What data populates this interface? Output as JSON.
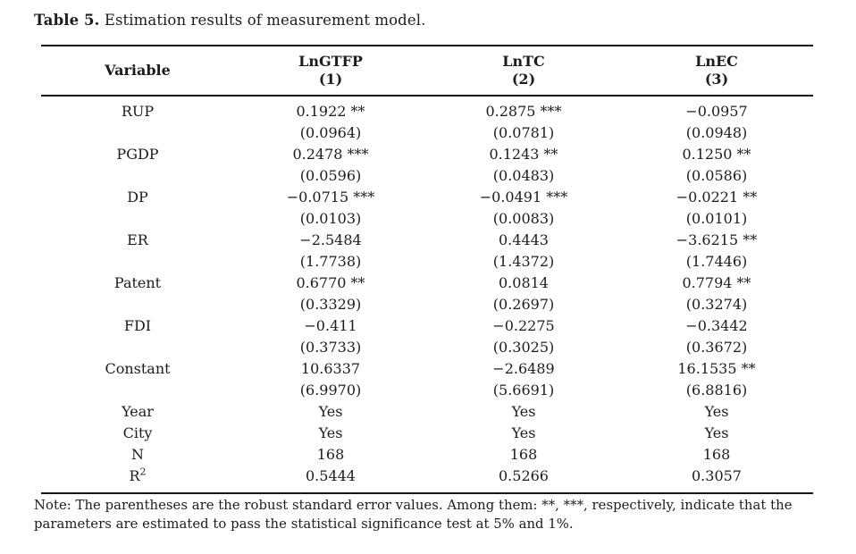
{
  "caption": {
    "label": "Table 5.",
    "text": " Estimation results of measurement model."
  },
  "table": {
    "columns": [
      {
        "line1": "Variable",
        "line2": ""
      },
      {
        "line1": "LnGTFP",
        "line2": "(1)"
      },
      {
        "line1": "LnTC",
        "line2": "(2)"
      },
      {
        "line1": "LnEC",
        "line2": "(3)"
      }
    ],
    "rows": [
      {
        "label": "RUP",
        "sup": "",
        "cells": [
          "0.1922 **",
          "0.2875 ***",
          "−0.0957"
        ]
      },
      {
        "label": "",
        "sup": "",
        "cells": [
          "(0.0964)",
          "(0.0781)",
          "(0.0948)"
        ]
      },
      {
        "label": "PGDP",
        "sup": "",
        "cells": [
          "0.2478 ***",
          "0.1243 **",
          "0.1250 **"
        ]
      },
      {
        "label": "",
        "sup": "",
        "cells": [
          "(0.0596)",
          "(0.0483)",
          "(0.0586)"
        ]
      },
      {
        "label": "DP",
        "sup": "",
        "cells": [
          "−0.0715 ***",
          "−0.0491 ***",
          "−0.0221 **"
        ]
      },
      {
        "label": "",
        "sup": "",
        "cells": [
          "(0.0103)",
          "(0.0083)",
          "(0.0101)"
        ]
      },
      {
        "label": "ER",
        "sup": "",
        "cells": [
          "−2.5484",
          "0.4443",
          "−3.6215 **"
        ]
      },
      {
        "label": "",
        "sup": "",
        "cells": [
          "(1.7738)",
          "(1.4372)",
          "(1.7446)"
        ]
      },
      {
        "label": "Patent",
        "sup": "",
        "cells": [
          "0.6770 **",
          "0.0814",
          "0.7794 **"
        ]
      },
      {
        "label": "",
        "sup": "",
        "cells": [
          "(0.3329)",
          "(0.2697)",
          "(0.3274)"
        ]
      },
      {
        "label": "FDI",
        "sup": "",
        "cells": [
          "−0.411",
          "−0.2275",
          "−0.3442"
        ]
      },
      {
        "label": "",
        "sup": "",
        "cells": [
          "(0.3733)",
          "(0.3025)",
          "(0.3672)"
        ]
      },
      {
        "label": "Constant",
        "sup": "",
        "cells": [
          "10.6337",
          "−2.6489",
          "16.1535 **"
        ]
      },
      {
        "label": "",
        "sup": "",
        "cells": [
          "(6.9970)",
          "(5.6691)",
          "(6.8816)"
        ]
      },
      {
        "label": "Year",
        "sup": "",
        "cells": [
          "Yes",
          "Yes",
          "Yes"
        ]
      },
      {
        "label": "City",
        "sup": "",
        "cells": [
          "Yes",
          "Yes",
          "Yes"
        ]
      },
      {
        "label": "N",
        "sup": "",
        "cells": [
          "168",
          "168",
          "168"
        ]
      },
      {
        "label": "R",
        "sup": "2",
        "cells": [
          "0.5444",
          "0.5266",
          "0.3057"
        ]
      }
    ]
  },
  "note": {
    "text": "Note: The parentheses are the robust standard error values. Among them: **, ***, respectively, indicate that the parameters are estimated to pass the statistical significance test at 5% and 1%."
  }
}
